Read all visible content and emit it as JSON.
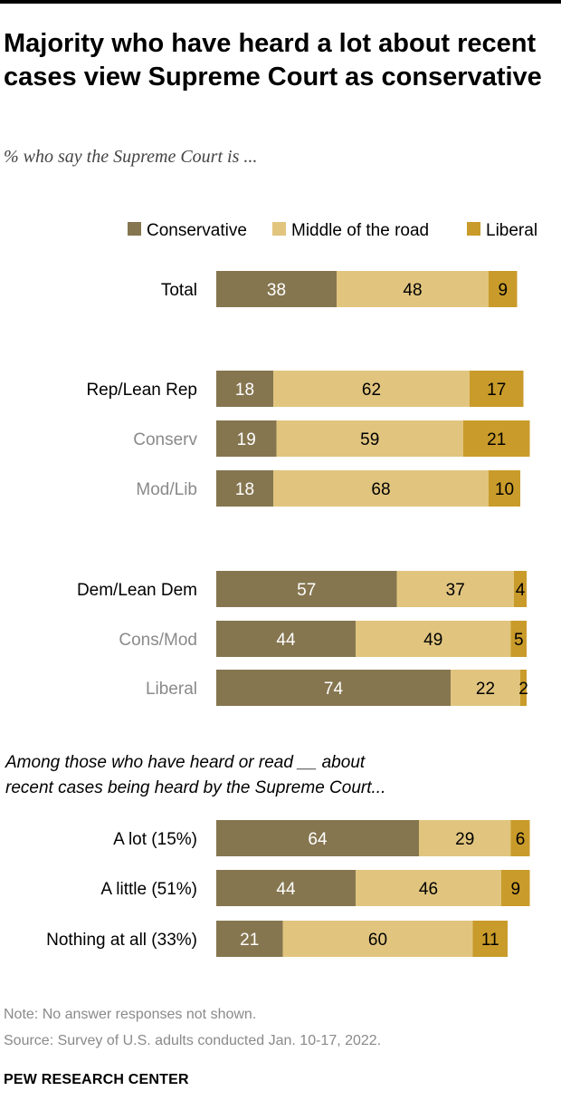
{
  "title": "Majority who have heard a lot about recent cases view Supreme Court as conservative",
  "subtitle": "% who say the Supreme Court is ...",
  "section_label_line1": "Among those who have heard or read __ about",
  "section_label_line2": "recent cases being heard by the Supreme Court...",
  "note": "Note: No answer responses not shown.",
  "source": "Source: Survey of U.S. adults conducted Jan. 10-17, 2022.",
  "brand": "PEW RESEARCH CENTER",
  "colors": {
    "conservative": "#857650",
    "middle": "#e1c57f",
    "liberal": "#c99b2a",
    "primary_label": "#000000",
    "secondary_label": "#8a8a8a"
  },
  "chart_data": {
    "type": "bar",
    "orientation": "horizontal",
    "stacked": true,
    "legend_position": "top-right",
    "xlim": [
      0,
      100
    ],
    "series": [
      {
        "name": "Conservative",
        "values": [
          38,
          18,
          19,
          18,
          57,
          44,
          74,
          64,
          44,
          21
        ]
      },
      {
        "name": "Middle of the road",
        "values": [
          48,
          62,
          59,
          68,
          37,
          49,
          22,
          29,
          46,
          60
        ]
      },
      {
        "name": "Liberal",
        "values": [
          9,
          17,
          21,
          10,
          4,
          5,
          2,
          6,
          9,
          11
        ]
      }
    ],
    "categories": [
      "Total",
      "Rep/Lean Rep",
      "Conserv",
      "Mod/Lib",
      "Dem/Lean Dem",
      "Cons/Mod",
      "Liberal",
      "A lot (15%)",
      "A little (51%)",
      "Nothing at all (33%)"
    ],
    "category_style": [
      "primary",
      "primary",
      "secondary",
      "secondary",
      "primary",
      "secondary",
      "secondary",
      "primary",
      "primary",
      "primary"
    ]
  }
}
